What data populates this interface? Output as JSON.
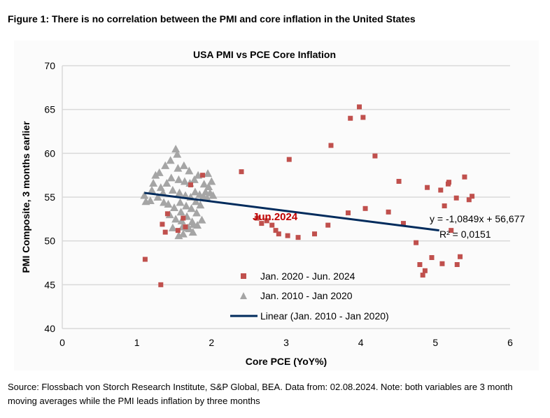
{
  "figure_title": "Figure 1: There is no correlation between the PMI and core inflation in the United States",
  "source": "Source: Flossbach von Storch Research Institute, S&P Global, BEA. Data from: 02.08.2024. Note: both variables are 3 month moving averages while the PMI leads inflation by three months",
  "chart_data": {
    "type": "scatter",
    "title": "USA PMI vs PCE Core Inflation",
    "xlabel": "Core PCE (YoY%)",
    "ylabel": "PMI Composite, 3 months earlier",
    "xlim": [
      0,
      6
    ],
    "ylim": [
      40,
      70
    ],
    "xticks": [
      "0",
      "1",
      "2",
      "3",
      "4",
      "5",
      "6"
    ],
    "yticks": [
      "40",
      "45",
      "50",
      "55",
      "60",
      "65",
      "70"
    ],
    "grid": "horizontal",
    "legend_placement": "bottom-center",
    "annotation": "Jun.2024",
    "annotation_color": "#c00000",
    "trendline_equation": "y = -1,0849x + 56,677",
    "trendline_r2": "R² = 0,0151",
    "series": [
      {
        "name": "Jan. 2020 - Jun. 2024",
        "marker": "square",
        "color": "#c0504d",
        "points": [
          [
            1.11,
            47.9
          ],
          [
            1.32,
            45.0
          ],
          [
            1.34,
            51.9
          ],
          [
            1.38,
            51.0
          ],
          [
            1.41,
            53.1
          ],
          [
            1.62,
            52.6
          ],
          [
            1.65,
            51.6
          ],
          [
            1.72,
            56.4
          ],
          [
            1.88,
            57.5
          ],
          [
            1.55,
            51.2
          ],
          [
            2.4,
            57.9
          ],
          [
            3.04,
            59.3
          ],
          [
            3.6,
            60.9
          ],
          [
            3.86,
            64.0
          ],
          [
            3.98,
            65.3
          ],
          [
            4.03,
            64.1
          ],
          [
            4.19,
            59.7
          ],
          [
            4.51,
            56.8
          ],
          [
            2.61,
            52.6
          ],
          [
            2.67,
            52.0
          ],
          [
            2.74,
            52.3
          ],
          [
            2.81,
            51.8
          ],
          [
            2.86,
            51.2
          ],
          [
            2.9,
            50.8
          ],
          [
            3.02,
            50.6
          ],
          [
            3.16,
            50.4
          ],
          [
            3.38,
            50.8
          ],
          [
            3.56,
            51.8
          ],
          [
            3.83,
            53.2
          ],
          [
            4.06,
            53.7
          ],
          [
            4.37,
            53.3
          ],
          [
            4.57,
            52.0
          ],
          [
            4.74,
            49.8
          ],
          [
            4.79,
            47.3
          ],
          [
            4.83,
            46.1
          ],
          [
            4.86,
            46.6
          ],
          [
            4.95,
            48.1
          ],
          [
            4.89,
            56.1
          ],
          [
            5.07,
            55.8
          ],
          [
            5.12,
            54.0
          ],
          [
            5.17,
            56.5
          ],
          [
            5.18,
            56.7
          ],
          [
            5.21,
            51.2
          ],
          [
            5.28,
            54.9
          ],
          [
            5.39,
            57.3
          ],
          [
            5.45,
            54.7
          ],
          [
            5.49,
            55.1
          ],
          [
            5.09,
            47.4
          ],
          [
            5.29,
            47.3
          ],
          [
            5.33,
            48.2
          ]
        ]
      },
      {
        "name": "Jan. 2010 - Jan 2020",
        "marker": "triangle",
        "color": "#a5a5a5",
        "points": [
          [
            1.1,
            55.2
          ],
          [
            1.12,
            54.5
          ],
          [
            1.18,
            54.6
          ],
          [
            1.2,
            55.8
          ],
          [
            1.22,
            56.6
          ],
          [
            1.25,
            57.5
          ],
          [
            1.28,
            55.0
          ],
          [
            1.3,
            57.8
          ],
          [
            1.32,
            56.1
          ],
          [
            1.35,
            55.5
          ],
          [
            1.38,
            58.6
          ],
          [
            1.4,
            56.6
          ],
          [
            1.42,
            54.2
          ],
          [
            1.45,
            59.2
          ],
          [
            1.46,
            57.2
          ],
          [
            1.48,
            55.8
          ],
          [
            1.5,
            53.8
          ],
          [
            1.52,
            60.5
          ],
          [
            1.54,
            59.9
          ],
          [
            1.55,
            58.3
          ],
          [
            1.56,
            57.0
          ],
          [
            1.57,
            55.5
          ],
          [
            1.58,
            54.4
          ],
          [
            1.59,
            53.3
          ],
          [
            1.6,
            52.3
          ],
          [
            1.61,
            51.6
          ],
          [
            1.62,
            50.8
          ],
          [
            1.63,
            58.6
          ],
          [
            1.64,
            56.8
          ],
          [
            1.65,
            55.2
          ],
          [
            1.66,
            54.0
          ],
          [
            1.67,
            52.8
          ],
          [
            1.68,
            51.5
          ],
          [
            1.7,
            58.0
          ],
          [
            1.71,
            56.6
          ],
          [
            1.72,
            55.0
          ],
          [
            1.73,
            53.7
          ],
          [
            1.74,
            52.2
          ],
          [
            1.75,
            51.0
          ],
          [
            1.77,
            57.0
          ],
          [
            1.78,
            55.6
          ],
          [
            1.79,
            54.5
          ],
          [
            1.8,
            53.2
          ],
          [
            1.81,
            51.8
          ],
          [
            1.82,
            57.5
          ],
          [
            1.84,
            55.3
          ],
          [
            1.85,
            54.1
          ],
          [
            1.87,
            52.4
          ],
          [
            1.89,
            55.1
          ],
          [
            1.9,
            56.5
          ],
          [
            1.92,
            55.6
          ],
          [
            1.94,
            54.9
          ],
          [
            1.95,
            57.7
          ],
          [
            1.96,
            56.2
          ],
          [
            1.98,
            55.5
          ],
          [
            2.0,
            56.8
          ],
          [
            2.02,
            55.2
          ],
          [
            1.52,
            52.5
          ],
          [
            1.48,
            51.5
          ],
          [
            1.56,
            50.6
          ],
          [
            1.44,
            53.0
          ],
          [
            1.36,
            54.4
          ],
          [
            1.7,
            51.4
          ],
          [
            1.76,
            51.9
          ]
        ]
      }
    ],
    "trendline": {
      "name": "Linear (Jan. 2010 - Jan 2020)",
      "color": "#002b5c",
      "slope": -1.0849,
      "intercept": 56.677,
      "x_range": [
        1.1,
        5.05
      ]
    }
  }
}
